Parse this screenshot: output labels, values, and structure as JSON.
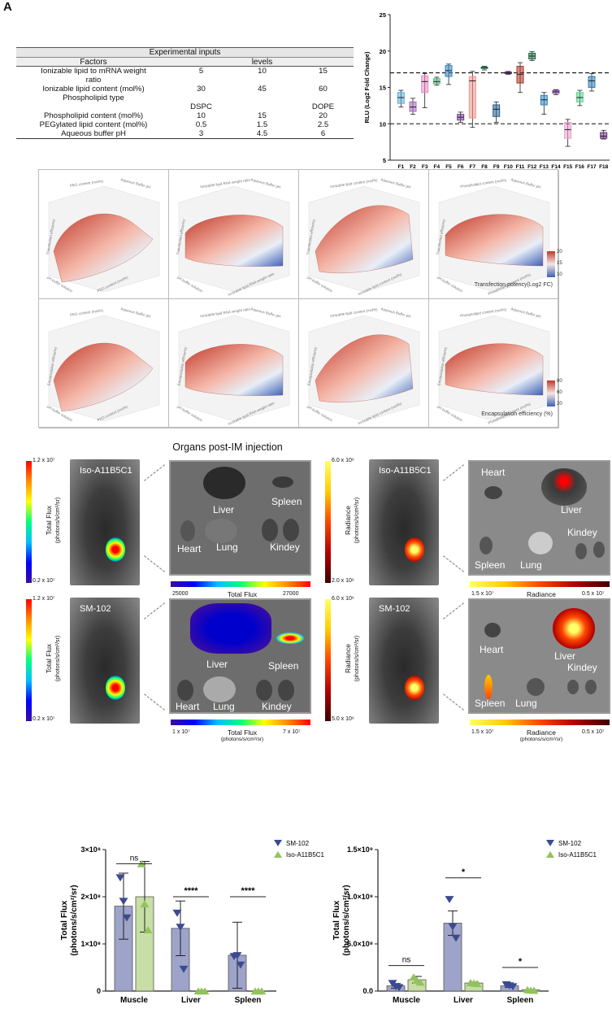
{
  "panel_letter": "A",
  "table": {
    "title": "Experimental inputs",
    "headers": [
      "Factors",
      "levels"
    ],
    "rows": [
      {
        "factor_line1": "Ionizable lipid to mRNA weight",
        "factor_line2": "ratio",
        "v1": "5",
        "v2": "10",
        "v3": "15"
      },
      {
        "factor_line1": "Ionizable lipid content (mol%)",
        "factor_line2": "",
        "v1": "30",
        "v2": "45",
        "v3": "60"
      },
      {
        "factor_line1": "Phospholipid type",
        "factor_line2": "",
        "v1": "DSPC",
        "v2": "",
        "v3": "DOPE"
      },
      {
        "factor_line1": "Phospholipid content (mol%)",
        "factor_line2": "",
        "v1": "10",
        "v2": "15",
        "v3": "20"
      },
      {
        "factor_line1": "PEGylated lipid content (mol%)",
        "factor_line2": "",
        "v1": "0.5",
        "v2": "1.5",
        "v3": "2.5"
      },
      {
        "factor_line1": "Aqueous buffer pH",
        "factor_line2": "",
        "v1": "3",
        "v2": "4.5",
        "v3": "6"
      }
    ]
  },
  "chart_data": [
    {
      "type": "box",
      "title": "",
      "xlabel": "",
      "ylabel": "RLU (Log2 Fold Change)",
      "ylim": [
        5,
        25
      ],
      "yticks": [
        5,
        10,
        15,
        20,
        25
      ],
      "reference_lines": [
        17,
        10
      ],
      "categories": [
        "F1",
        "F2",
        "F3",
        "F4",
        "F5",
        "F6",
        "F7",
        "F8",
        "F9",
        "F10",
        "F11",
        "F12",
        "F13",
        "F14",
        "F15",
        "F16",
        "F17",
        "F18"
      ],
      "boxes": [
        {
          "min": 12.3,
          "q1": 12.8,
          "median": 13.6,
          "q3": 14.3,
          "max": 14.6,
          "color": "#5dade2"
        },
        {
          "min": 11.3,
          "q1": 11.7,
          "median": 12.3,
          "q3": 13.0,
          "max": 13.5,
          "color": "#a569bd"
        },
        {
          "min": 12.2,
          "q1": 14.3,
          "median": 15.8,
          "q3": 16.6,
          "max": 16.9,
          "color": "#e88ac4"
        },
        {
          "min": 15.3,
          "q1": 15.5,
          "median": 15.8,
          "q3": 16.2,
          "max": 16.4,
          "color": "#52be80"
        },
        {
          "min": 15.4,
          "q1": 16.5,
          "median": 17.3,
          "q3": 18.0,
          "max": 18.2,
          "color": "#2e86c1"
        },
        {
          "min": 10.2,
          "q1": 10.5,
          "median": 10.9,
          "q3": 11.3,
          "max": 11.6,
          "color": "#7d3c98"
        },
        {
          "min": 9.5,
          "q1": 10.8,
          "median": 15.9,
          "q3": 16.5,
          "max": 17.2,
          "color": "#f1948a"
        },
        {
          "min": 17.4,
          "q1": 17.6,
          "median": 17.7,
          "q3": 17.8,
          "max": 17.9,
          "color": "#229954"
        },
        {
          "min": 10.2,
          "q1": 11.0,
          "median": 12.0,
          "q3": 12.6,
          "max": 13.0,
          "color": "#1f618d"
        },
        {
          "min": 16.8,
          "q1": 16.9,
          "median": 17.0,
          "q3": 17.1,
          "max": 17.2,
          "color": "#5b2c6f"
        },
        {
          "min": 14.3,
          "q1": 15.6,
          "median": 16.8,
          "q3": 17.9,
          "max": 18.4,
          "color": "#a93226"
        },
        {
          "min": 18.7,
          "q1": 18.9,
          "median": 19.3,
          "q3": 19.7,
          "max": 19.9,
          "color": "#196f3d"
        },
        {
          "min": 11.3,
          "q1": 12.6,
          "median": 13.3,
          "q3": 13.9,
          "max": 14.3,
          "color": "#2e86c1"
        },
        {
          "min": 14.0,
          "q1": 14.2,
          "median": 14.4,
          "q3": 14.6,
          "max": 14.7,
          "color": "#8e44ad"
        },
        {
          "min": 6.9,
          "q1": 8.0,
          "median": 9.2,
          "q3": 10.2,
          "max": 10.6,
          "color": "#e8a0cc"
        },
        {
          "min": 12.5,
          "q1": 13.0,
          "median": 13.6,
          "q3": 14.3,
          "max": 14.6,
          "color": "#58d68d"
        },
        {
          "min": 14.5,
          "q1": 15.0,
          "median": 15.9,
          "q3": 16.5,
          "max": 16.9,
          "color": "#2980b9"
        },
        {
          "min": 7.9,
          "q1": 8.0,
          "median": 8.3,
          "q3": 8.8,
          "max": 9.1,
          "color": "#6c3483"
        }
      ]
    },
    {
      "type": "bar",
      "title": "",
      "xlabel": "",
      "ylabel": "Total Flux (photons/s/cm²/sr)",
      "ylim": [
        0,
        300000000.0
      ],
      "yticks": [
        {
          "v": 0,
          "label": "0"
        },
        {
          "v": 100000000.0,
          "label": "1×10⁸"
        },
        {
          "v": 200000000.0,
          "label": "2×10⁸"
        },
        {
          "v": 300000000.0,
          "label": "3×10⁸"
        }
      ],
      "categories": [
        "Muscle",
        "Liver",
        "Spleen"
      ],
      "series": [
        {
          "name": "SM-102",
          "color": "#9ea3c9",
          "marker_color": "#3c4a8f",
          "marker": "triangle-down",
          "values": [
            180000000.0,
            133000000.0,
            76000000.0
          ],
          "errors": [
            70000000.0,
            58000000.0,
            70000000.0
          ],
          "points": [
            [
              240000000.0,
              165000000.0,
              73000000.0
            ],
            [
              190000000.0,
              135000000.0,
              75000000.0
            ],
            [
              155000000.0,
              46000000.0,
              55000000.0
            ]
          ]
        },
        {
          "name": "Iso-A11B5C1",
          "color": "#c7dea6",
          "marker_color": "#92c25d",
          "marker": "triangle-up",
          "values": [
            200000000.0,
            200000.0,
            200000.0
          ],
          "errors": [
            75000000.0,
            0,
            0
          ],
          "points": [
            [
              270000000.0,
              200000.0,
              200000.0
            ],
            [
              185000000.0,
              200000.0,
              200000.0
            ],
            [
              130000000.0,
              200000.0,
              200000.0
            ]
          ]
        }
      ],
      "significance": [
        {
          "category": "Muscle",
          "label": "ns",
          "level": 270000000.0
        },
        {
          "category": "Liver",
          "label": "****",
          "level": 200000000.0
        },
        {
          "category": "Spleen",
          "label": "****",
          "level": 200000000.0
        }
      ]
    },
    {
      "type": "bar",
      "title": "",
      "xlabel": "",
      "ylabel": "Total Flux (photons/s/cm²/sr)",
      "ylim": [
        0,
        1500000000.0
      ],
      "yticks": [
        {
          "v": 0,
          "label": "0.0"
        },
        {
          "v": 500000000.0,
          "label": "5.0×10⁸"
        },
        {
          "v": 1000000000.0,
          "label": "1.0×10⁹"
        },
        {
          "v": 1500000000.0,
          "label": "1.5×10⁹"
        }
      ],
      "categories": [
        "Muscle",
        "Liver",
        "Spleen"
      ],
      "series": [
        {
          "name": "SM-102",
          "color": "#9ea3c9",
          "marker_color": "#3c4a8f",
          "marker": "triangle-down",
          "values": [
            55000000.0,
            720000000.0,
            55000000.0
          ],
          "errors": [
            25000000.0,
            130000000.0,
            15000000.0
          ],
          "points": [
            [
              80000000.0,
              970000000.0,
              65000000.0
            ],
            [
              45000000.0,
              680000000.0,
              55000000.0
            ],
            [
              35000000.0,
              560000000.0,
              45000000.0
            ]
          ]
        },
        {
          "name": "Iso-A11B5C1",
          "color": "#c7dea6",
          "marker_color": "#92c25d",
          "marker": "triangle-up",
          "values": [
            120000000.0,
            85000000.0,
            12000000.0
          ],
          "errors": [
            35000000.0,
            10000000.0,
            5000000.0
          ],
          "points": [
            [
              150000000.0,
              90000000.0,
              15000000.0
            ],
            [
              115000000.0,
              85000000.0,
              10000000.0
            ],
            [
              95000000.0,
              80000000.0,
              8000000.0
            ]
          ]
        }
      ],
      "significance": [
        {
          "category": "Muscle",
          "label": "ns",
          "level": 270000000.0
        },
        {
          "category": "Liver",
          "label": "*",
          "level": 1200000000.0
        },
        {
          "category": "Spleen",
          "label": "*",
          "level": 250000000.0
        }
      ]
    }
  ],
  "surfaces": {
    "row1_legend": {
      "title": "Transfection potency(Log2 FC)",
      "max": "20",
      "mid": "15",
      "min": "10"
    },
    "row2_legend": {
      "title": "Encapsulation efficiency (%)",
      "max": "80",
      "mid": "60",
      "min": "20"
    },
    "row1_cells": [
      {
        "top_left": "PEG content (mol%)",
        "top_right": "Aqueous Buffer pH",
        "side": "Transfection efficiency",
        "bottom_left": "pH buffer solution",
        "bottom_right": "PEG content (mol%)"
      },
      {
        "top_left": "Ionizable lipid RNA weight ratio",
        "top_right": "Aqueous Buffer pH",
        "side": "Transfection efficiency",
        "bottom_left": "pH buffer solution",
        "bottom_right": "Ionizable lipid RNA weight ratio"
      },
      {
        "top_left": "Ionizable lipid content (mol%)",
        "top_right": "Aqueous Buffer pH",
        "side": "Transfection efficiency",
        "bottom_left": "pH buffer solution",
        "bottom_right": "Ionizable lipid content (mol%)"
      },
      {
        "top_left": "Phospholipid content (mol%)",
        "top_right": "Aqueous Buffer pH",
        "side": "Transfection efficiency",
        "bottom_left": "pH buffer solution",
        "bottom_right": "Phospholipid content (mol%)"
      }
    ],
    "row2_cells": [
      {
        "top_left": "PEG content (mol%)",
        "top_right": "Aqueous Buffer pH",
        "side": "Encapsulation efficiency",
        "bottom_left": "pH buffer solution",
        "bottom_right": "PEG content (mol%)"
      },
      {
        "top_left": "Ionizable lipid RNA weight ratio",
        "top_right": "Aqueous Buffer pH",
        "side": "Encapsulation efficiency",
        "bottom_left": "pH buffer solution",
        "bottom_right": "Ionizable lipid RNA weight ratio"
      },
      {
        "top_left": "Ionizable lipid content (mol%)",
        "top_right": "Aqueous Buffer pH",
        "side": "Encapsulation efficiency",
        "bottom_left": "pH buffer solution",
        "bottom_right": "Ionizable lipid content (mol%)"
      },
      {
        "top_left": "Phospholipid content (mol%)",
        "top_right": "Aqueous Buffer pH",
        "side": "Encapsulation efficiency",
        "bottom_left": "pH buffer solution",
        "bottom_right": "Phospholipid content (mol%)"
      }
    ]
  },
  "imaging": {
    "title": "Organs post-IM injection",
    "left_top": {
      "max": "1.2 x 10⁷",
      "min": "0.2 x 10⁷",
      "axis": "Total Flux",
      "axis_units": "(photons/s/cm²/sr)",
      "mouse_label": "Iso-A11B5C1",
      "organs": [
        "Liver",
        "Spleen",
        "Heart",
        "Lung",
        "Kindey"
      ],
      "scale_min": "25000",
      "scale_max": "27000",
      "scale_title": "Total Flux",
      "scale_units": "(photons/s/cm²/sr)"
    },
    "left_bottom": {
      "max": "1.2 x 10⁷",
      "min": "0.2 x 10⁷",
      "axis": "Total Flux",
      "axis_units": "(photons/s/cm²/sr)",
      "mouse_label": "SM-102",
      "organs": [
        "Liver",
        "Spleen",
        "Heart",
        "Lung",
        "Kindey"
      ],
      "scale_min": "1 x 10⁷",
      "scale_max": "7 x 10⁷",
      "scale_title": "Total Flux",
      "scale_units": "(photons/s/cm²/sr)"
    },
    "right_top": {
      "max": "6.0 x 10⁶",
      "min": "2.0 x 10⁶",
      "axis": "Radiance",
      "axis_units": "(photons/s/cm²/sr)",
      "mouse_label": "Iso-A11B5C1",
      "organs": [
        "Heart",
        "Liver",
        "Spleen",
        "Lung",
        "Kindey"
      ],
      "scale_min": "1.5 x 10⁷",
      "scale_max": "0.5 x 10⁷",
      "scale_title": "Radiance",
      "scale_units": "(photons/s/cm²/sr)"
    },
    "right_bottom": {
      "max": "6.0 x 10⁶",
      "min": "5.0 x 10⁶",
      "axis": "Radiance",
      "axis_units": "(photons/s/cm²/sr)",
      "mouse_label": "SM-102",
      "organs": [
        "Heart",
        "Liver",
        "Spleen",
        "Lung",
        "Kindey"
      ],
      "scale_min": "1.5 x 10⁷",
      "scale_max": "0.5 x 10⁷",
      "scale_title": "Radiance",
      "scale_units": "(photons/s/cm²/sr)"
    }
  }
}
